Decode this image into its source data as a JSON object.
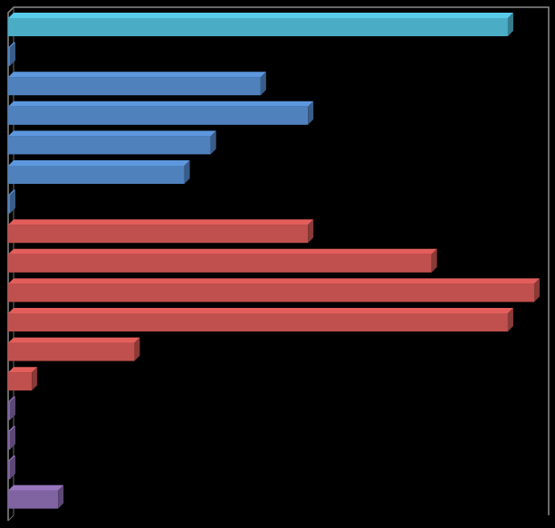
{
  "chart_data": {
    "type": "bar",
    "orientation": "horizontal",
    "style": "3d",
    "title": "",
    "xlabel": "",
    "ylabel": "",
    "grid": false,
    "legend": "none",
    "xlim": [
      0,
      100
    ],
    "values": [
      95,
      0,
      48,
      57,
      38.5,
      33.5,
      0,
      57,
      80.5,
      100,
      95,
      24,
      4.5,
      0,
      0,
      0,
      9.5
    ],
    "bar_colors": [
      "#4BACC6",
      "#4F81BD",
      "#4F81BD",
      "#4F81BD",
      "#4F81BD",
      "#4F81BD",
      "#4F81BD",
      "#C0504D",
      "#C0504D",
      "#C0504D",
      "#C0504D",
      "#C0504D",
      "#C0504D",
      "#8064A2",
      "#8064A2",
      "#8064A2",
      "#8064A2"
    ]
  }
}
